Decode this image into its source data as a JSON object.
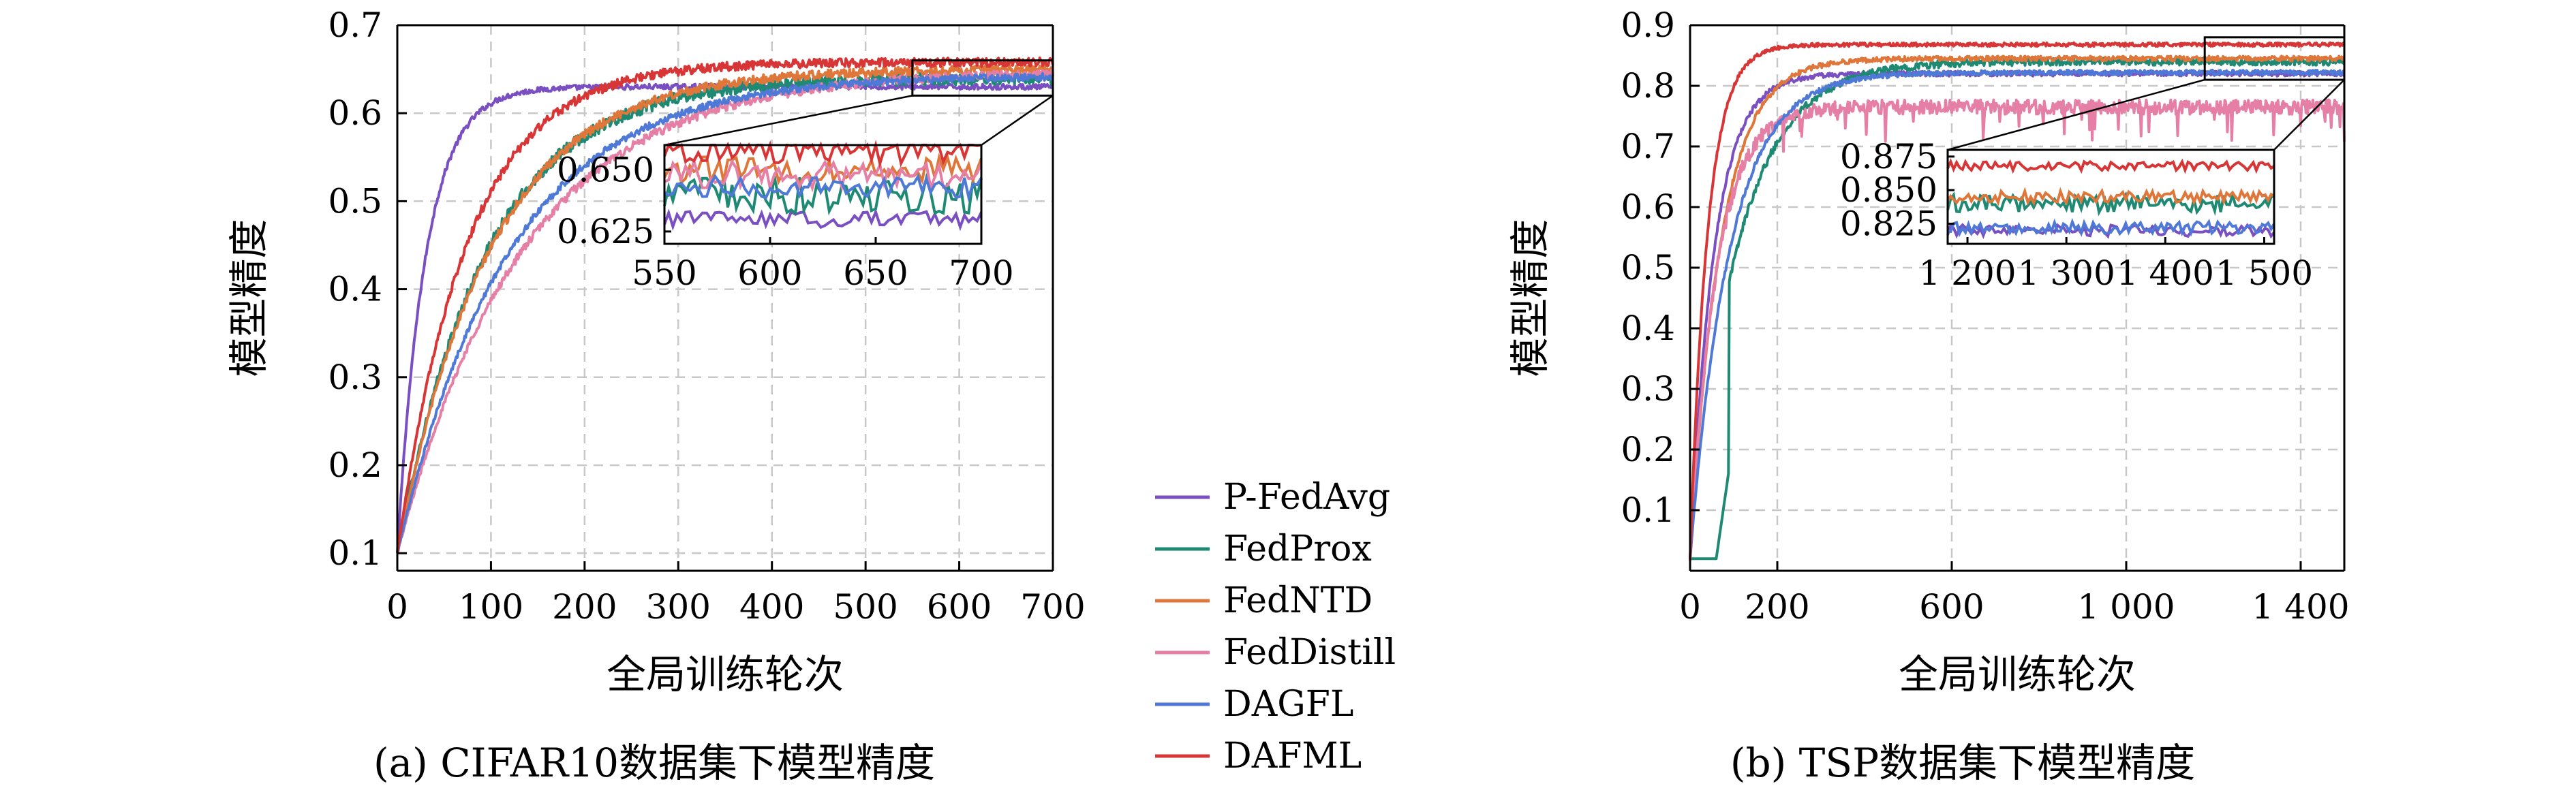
{
  "colors": {
    "P-FedAvg": "#7a4fc1",
    "FedProx": "#1f8a73",
    "FedNTD": "#e0773a",
    "FedDistill": "#e67fa6",
    "DAGFL": "#4f79d6",
    "DAFML": "#d83636"
  },
  "legend": {
    "items": [
      "P-FedAvg",
      "FedProx",
      "FedNTD",
      "FedDistill",
      "DAGFL",
      "DAFML"
    ]
  },
  "chart_data": [
    {
      "type": "line",
      "caption": "(a) CIFAR10数据集下模型精度",
      "xlabel": "全局训练轮次",
      "ylabel": "模型精度",
      "xlim": [
        0,
        700
      ],
      "ylim": [
        0.08,
        0.7
      ],
      "xticks": [
        0,
        100,
        200,
        300,
        400,
        500,
        600,
        700
      ],
      "xticklabels": [
        "0",
        "100",
        "200",
        "300",
        "400",
        "500",
        "600",
        "700"
      ],
      "yticks": [
        0.1,
        0.2,
        0.3,
        0.4,
        0.5,
        0.6,
        0.7
      ],
      "yticklabels": [
        "0.1",
        "0.2",
        "0.3",
        "0.4",
        "0.5",
        "0.6",
        "0.7"
      ],
      "grid": true,
      "series": [
        {
          "name": "P-FedAvg",
          "start": 0.1,
          "final": 0.63,
          "rate": 30,
          "noise": 0.003
        },
        {
          "name": "FedProx",
          "start": 0.1,
          "final": 0.64,
          "rate": 95,
          "noise": 0.007
        },
        {
          "name": "FedNTD",
          "start": 0.1,
          "final": 0.65,
          "rate": 100,
          "noise": 0.005
        },
        {
          "name": "FedDistill",
          "start": 0.1,
          "final": 0.648,
          "rate": 135,
          "noise": 0.005
        },
        {
          "name": "DAGFL",
          "start": 0.1,
          "final": 0.643,
          "rate": 120,
          "noise": 0.004
        },
        {
          "name": "DAFML",
          "start": 0.1,
          "final": 0.658,
          "rate": 75,
          "noise": 0.005
        }
      ],
      "inset": {
        "xlim": [
          550,
          700
        ],
        "ylim": [
          0.62,
          0.66
        ],
        "xticks": [
          550,
          600,
          650,
          700
        ],
        "xticklabels": [
          "550",
          "600",
          "650",
          "700"
        ],
        "yticks": [
          0.625,
          0.65
        ],
        "yticklabels": [
          "0.625",
          "0.650"
        ]
      }
    },
    {
      "type": "line",
      "caption": "(b) TSP数据集下模型精度",
      "xlabel": "全局训练轮次",
      "ylabel": "模型精度",
      "xlim": [
        0,
        1500
      ],
      "ylim": [
        0,
        0.9
      ],
      "xticks": [
        0,
        200,
        600,
        1000,
        1400
      ],
      "xticklabels": [
        "0",
        "200",
        "600",
        "1 000",
        "1 400"
      ],
      "yticks": [
        0.1,
        0.2,
        0.3,
        0.4,
        0.5,
        0.6,
        0.7,
        0.8,
        0.9
      ],
      "yticklabels": [
        "0.1",
        "0.2",
        "0.3",
        "0.4",
        "0.5",
        "0.6",
        "0.7",
        "0.8",
        "0.9"
      ],
      "grid": true,
      "series": [
        {
          "name": "P-FedAvg",
          "start": 0.02,
          "final": 0.82,
          "rate": 55,
          "noise": 0.004
        },
        {
          "name": "FedProx",
          "start": 0.02,
          "final": 0.84,
          "rate": 110,
          "noise": 0.006
        },
        {
          "name": "FedNTD",
          "start": 0.02,
          "final": 0.845,
          "rate": 70,
          "noise": 0.004
        },
        {
          "name": "FedDistill",
          "start": 0.02,
          "final": 0.765,
          "rate": 60,
          "noise": 0.012
        },
        {
          "name": "DAGFL",
          "start": 0.02,
          "final": 0.822,
          "rate": 90,
          "noise": 0.004
        },
        {
          "name": "DAFML",
          "start": 0.02,
          "final": 0.868,
          "rate": 40,
          "noise": 0.003
        }
      ],
      "inset": {
        "xlim": [
          1180,
          1510
        ],
        "ylim": [
          0.81,
          0.88
        ],
        "xticks": [
          1200,
          1300,
          1400,
          1500
        ],
        "xticklabels": [
          "1 200",
          "1 300",
          "1 400",
          "1 500"
        ],
        "yticks": [
          0.825,
          0.85,
          0.875
        ],
        "yticklabels": [
          "0.825",
          "0.850",
          "0.875"
        ]
      }
    }
  ]
}
